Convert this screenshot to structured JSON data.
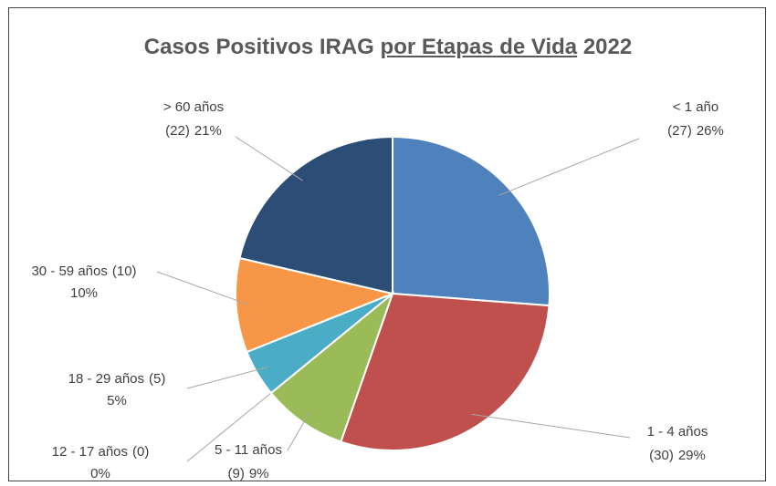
{
  "chart_data": {
    "type": "pie",
    "title_parts": [
      "Casos Positivos IRAG",
      "por Etapas de Vida",
      "2022"
    ],
    "categories": [
      "< 1 año",
      "1 - 4 años",
      "5 - 11 años",
      "12 - 17 años",
      "18 - 29 años",
      "30 - 59 años",
      "> 60 años"
    ],
    "values": [
      27,
      30,
      9,
      0,
      5,
      10,
      22
    ],
    "value_labels": [
      [
        "(27)",
        "26%"
      ],
      [
        "(30)",
        "29%"
      ],
      [
        "(9)",
        "9%"
      ],
      [
        "(0)",
        "0%"
      ],
      [
        "(5)",
        "5%"
      ],
      [
        "(10)",
        "10%"
      ],
      [
        "(22)",
        "21%"
      ]
    ],
    "colors": [
      "#4f81bd",
      "#c0504d",
      "#9bbb59",
      "#8064a2",
      "#4bacc6",
      "#f79646",
      "#2c4d75"
    ]
  }
}
